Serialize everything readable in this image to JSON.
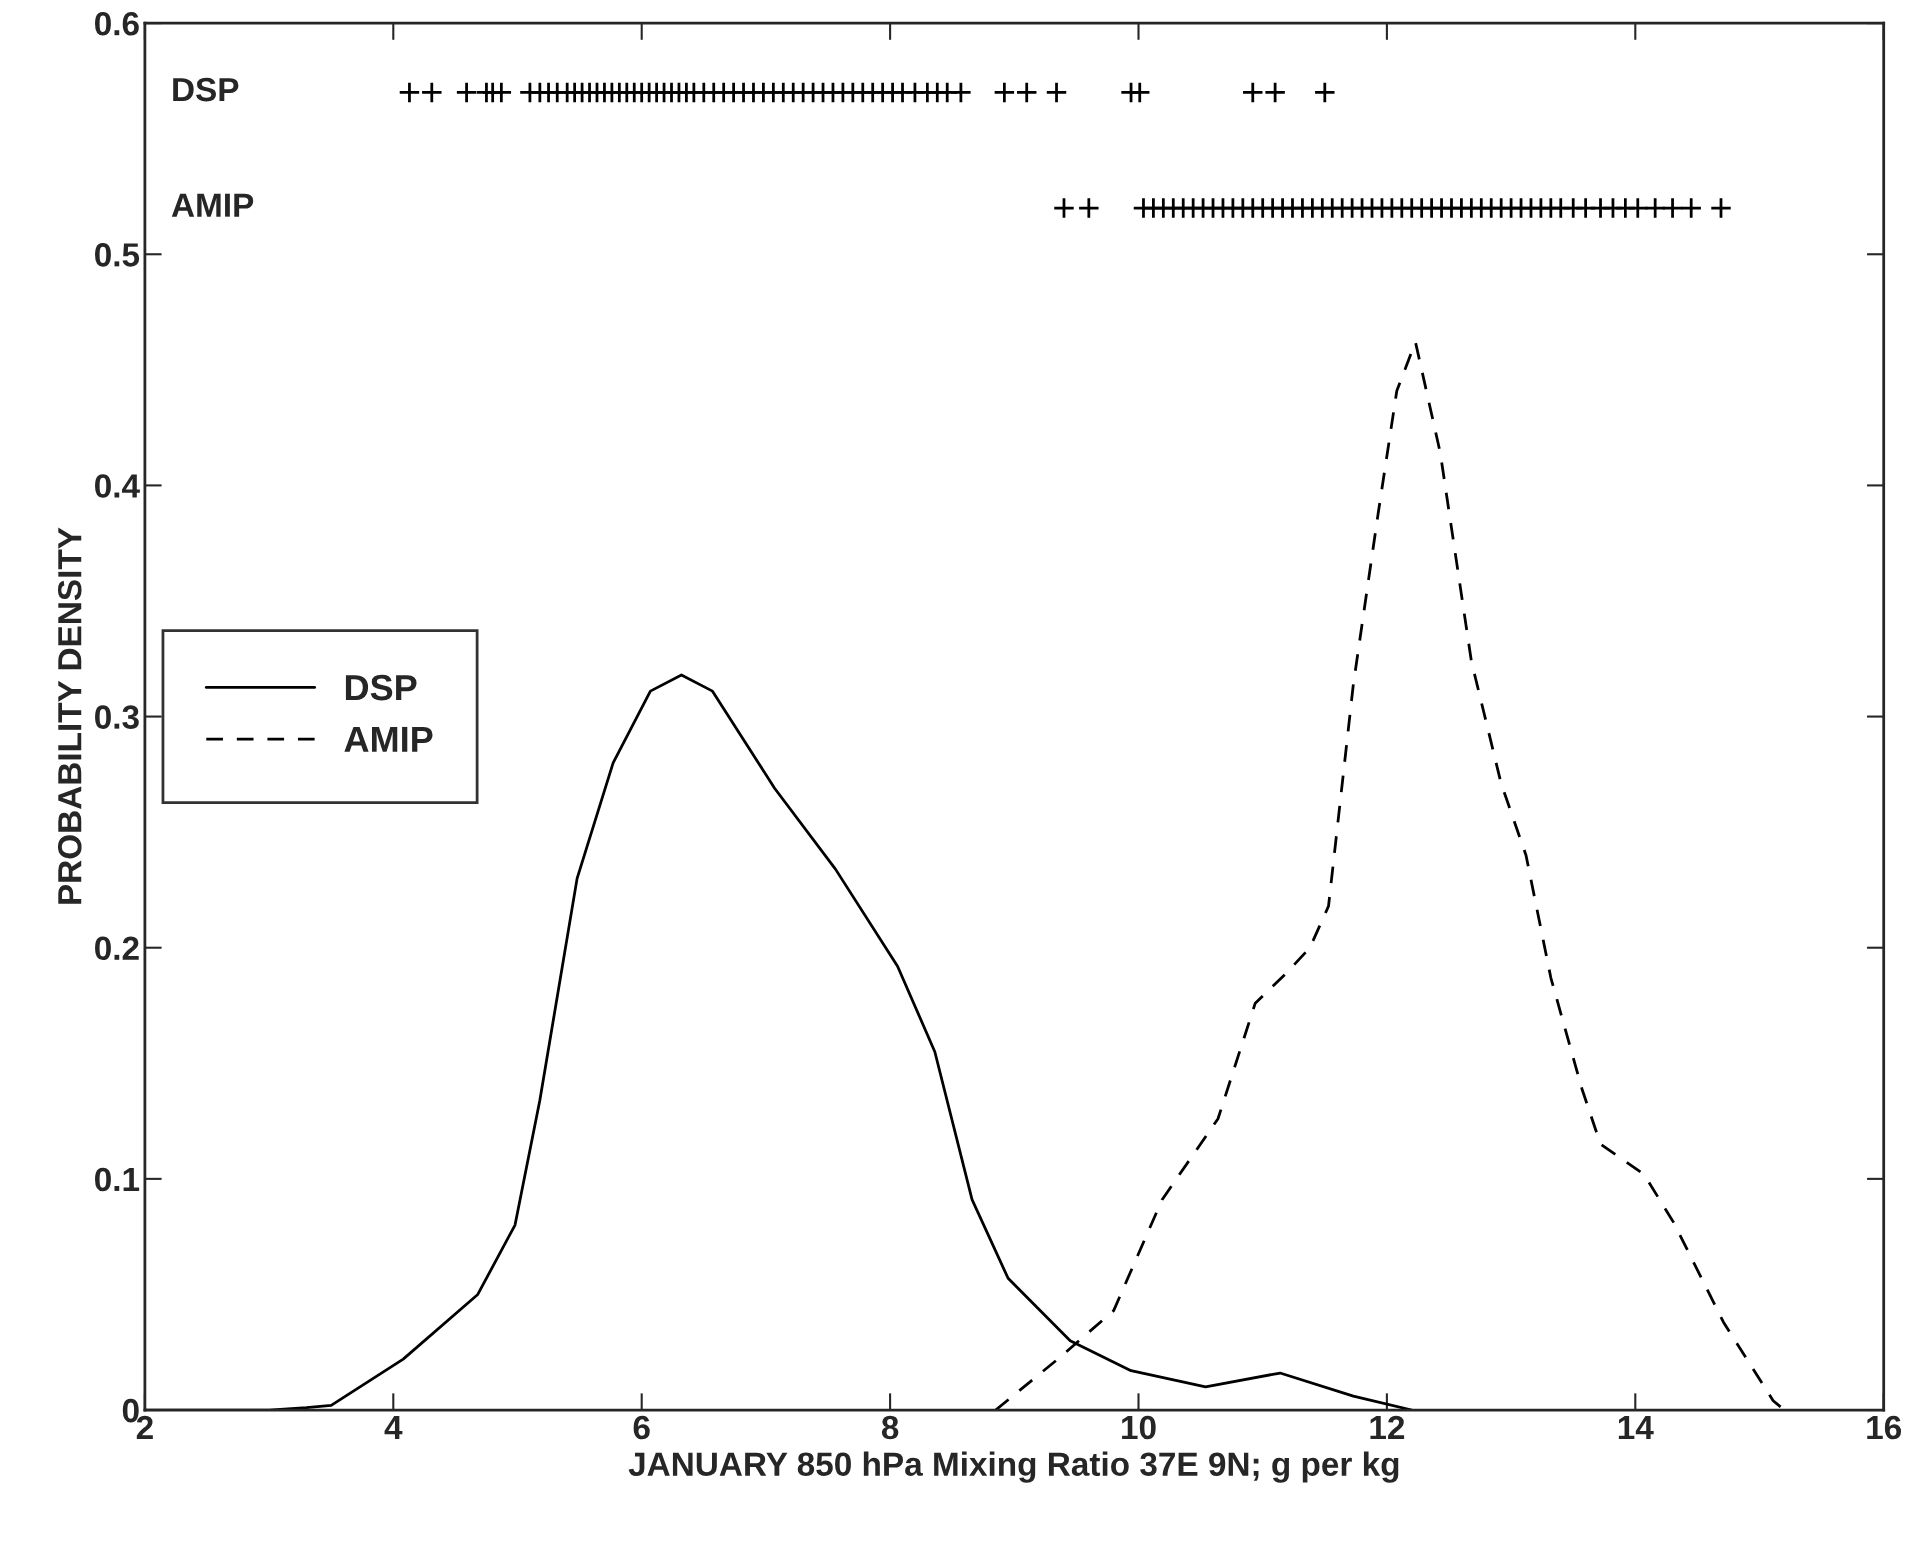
{
  "chart_data": {
    "type": "line",
    "xlabel": "JANUARY 850 hPa Mixing Ratio 37E 9N; g per kg",
    "ylabel": "PROBABILITY DENSITY",
    "xlim": [
      2,
      16
    ],
    "ylim": [
      0,
      0.6
    ],
    "xticks": [
      2,
      4,
      6,
      8,
      10,
      12,
      14,
      16
    ],
    "yticks": [
      0,
      0.1,
      0.2,
      0.3,
      0.4,
      0.5,
      0.6
    ],
    "grid": false,
    "legend": "center left",
    "annotations": [
      "DSP",
      "AMIP"
    ],
    "series": [
      {
        "name": "DSP",
        "color": "#000000",
        "line_style": "solid",
        "marker": "none",
        "x": [
          2,
          3,
          3.3,
          3.5,
          4.08,
          4.68,
          4.98,
          5.18,
          5.48,
          5.77,
          6.07,
          6.32,
          6.57,
          7.07,
          7.56,
          8.06,
          8.36,
          8.66,
          8.95,
          9.45,
          9.94,
          10.54,
          11.14,
          11.73,
          12.2
        ],
        "values": [
          0,
          0,
          0.001,
          0.002,
          0.022,
          0.05,
          0.08,
          0.134,
          0.23,
          0.28,
          0.311,
          0.318,
          0.311,
          0.269,
          0.234,
          0.192,
          0.155,
          0.091,
          0.057,
          0.03,
          0.017,
          0.01,
          0.016,
          0.006,
          0
        ]
      },
      {
        "name": "AMIP",
        "color": "#000000",
        "line_style": "dashed",
        "marker": "none",
        "x": [
          8.85,
          9.35,
          9.8,
          10.19,
          10.64,
          10.94,
          11.19,
          11.38,
          11.53,
          11.73,
          11.93,
          12.08,
          12.23,
          12.43,
          12.68,
          12.92,
          13.12,
          13.32,
          13.57,
          13.72,
          14.07,
          14.31,
          14.71,
          15.11,
          15.2
        ],
        "values": [
          0,
          0.022,
          0.043,
          0.091,
          0.126,
          0.176,
          0.189,
          0.2,
          0.218,
          0.314,
          0.388,
          0.441,
          0.462,
          0.414,
          0.324,
          0.271,
          0.24,
          0.187,
          0.139,
          0.115,
          0.102,
          0.081,
          0.038,
          0.004,
          0
        ]
      },
      {
        "type": "scatter",
        "color": "#000000",
        "marker": "cross",
        "x": [
          4.13,
          4.31,
          4.59,
          4.75,
          4.8,
          4.87,
          5.1,
          5.18,
          5.25,
          5.32,
          5.4,
          5.46,
          5.52,
          5.58,
          5.64,
          5.7,
          5.76,
          5.82,
          5.88,
          5.94,
          6.0,
          6.06,
          6.12,
          6.18,
          6.24,
          6.3,
          6.36,
          6.42,
          6.5,
          6.58,
          6.66,
          6.74,
          6.82,
          6.9,
          6.98,
          7.06,
          7.14,
          7.22,
          7.3,
          7.38,
          7.46,
          7.54,
          7.62,
          7.7,
          7.78,
          7.86,
          7.94,
          8.02,
          8.1,
          8.2,
          8.3,
          8.38,
          8.46,
          8.57,
          8.92,
          9.1,
          9.34,
          9.94,
          10.01,
          10.92,
          11.1,
          11.5
        ],
        "values": [
          0.57,
          0.57,
          0.57,
          0.57,
          0.57,
          0.57,
          0.57,
          0.57,
          0.57,
          0.57,
          0.57,
          0.57,
          0.57,
          0.57,
          0.57,
          0.57,
          0.57,
          0.57,
          0.57,
          0.57,
          0.57,
          0.57,
          0.57,
          0.57,
          0.57,
          0.57,
          0.57,
          0.57,
          0.57,
          0.57,
          0.57,
          0.57,
          0.57,
          0.57,
          0.57,
          0.57,
          0.57,
          0.57,
          0.57,
          0.57,
          0.57,
          0.57,
          0.57,
          0.57,
          0.57,
          0.57,
          0.57,
          0.57,
          0.57,
          0.57,
          0.57,
          0.57,
          0.57,
          0.57,
          0.57,
          0.57,
          0.57,
          0.57,
          0.57,
          0.57,
          0.57,
          0.57
        ]
      },
      {
        "type": "scatter",
        "color": "#000000",
        "marker": "cross",
        "x": [
          9.4,
          9.6,
          10.04,
          10.12,
          10.2,
          10.28,
          10.36,
          10.44,
          10.52,
          10.6,
          10.68,
          10.76,
          10.84,
          10.92,
          11.0,
          11.08,
          11.16,
          11.24,
          11.32,
          11.4,
          11.48,
          11.56,
          11.64,
          11.72,
          11.8,
          11.88,
          11.96,
          12.04,
          12.12,
          12.2,
          12.28,
          12.36,
          12.44,
          12.52,
          12.6,
          12.68,
          12.76,
          12.84,
          12.92,
          13.0,
          13.08,
          13.16,
          13.24,
          13.32,
          13.4,
          13.5,
          13.6,
          13.72,
          13.82,
          13.92,
          14.02,
          14.16,
          14.3,
          14.45,
          14.69
        ],
        "values": [
          0.52,
          0.52,
          0.52,
          0.52,
          0.52,
          0.52,
          0.52,
          0.52,
          0.52,
          0.52,
          0.52,
          0.52,
          0.52,
          0.52,
          0.52,
          0.52,
          0.52,
          0.52,
          0.52,
          0.52,
          0.52,
          0.52,
          0.52,
          0.52,
          0.52,
          0.52,
          0.52,
          0.52,
          0.52,
          0.52,
          0.52,
          0.52,
          0.52,
          0.52,
          0.52,
          0.52,
          0.52,
          0.52,
          0.52,
          0.52,
          0.52,
          0.52,
          0.52,
          0.52,
          0.52,
          0.52,
          0.52,
          0.52,
          0.52,
          0.52,
          0.52,
          0.52,
          0.52,
          0.52,
          0.52
        ]
      }
    ]
  }
}
